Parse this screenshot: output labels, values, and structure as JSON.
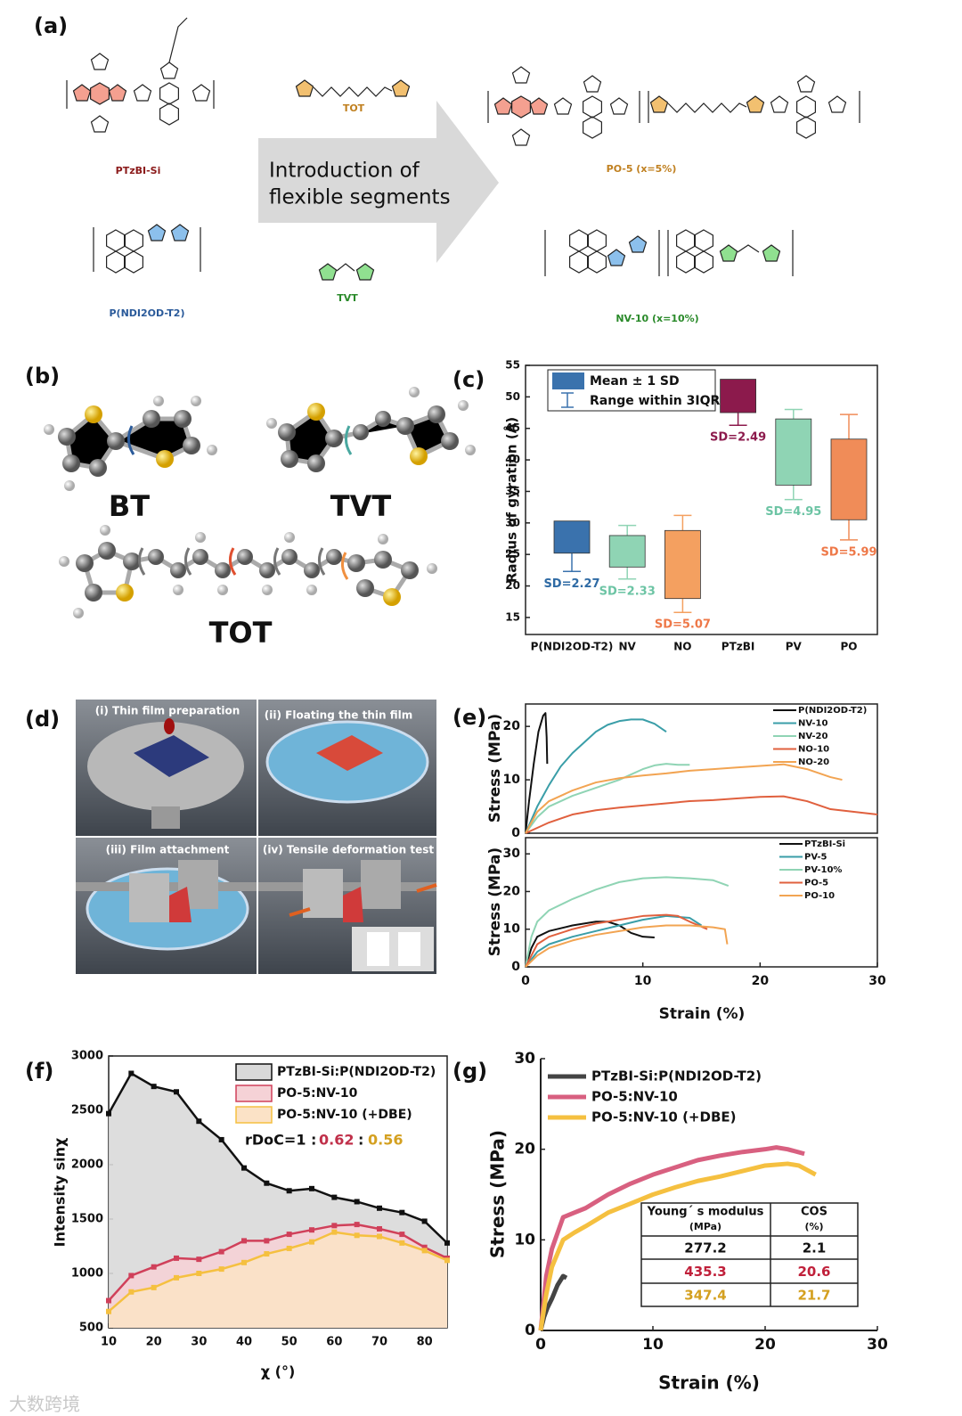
{
  "panel_labels": [
    "(a)",
    "(b)",
    "(c)",
    "(d)",
    "(e)",
    "(f)",
    "(g)"
  ],
  "panel_a": {
    "polymers": [
      "PTzBI-Si",
      "P(NDI2OD-T2)"
    ],
    "linkers": [
      "TOT",
      "TVT"
    ],
    "arrow_text": [
      "Introduction of",
      "flexible segments"
    ],
    "products": [
      "PO-5 (x=5%)",
      "NV-10 (x=10%)"
    ]
  },
  "panel_b": {
    "labels": [
      "BT",
      "TVT",
      "TOT"
    ]
  },
  "panel_d": {
    "steps": [
      "(i) Thin film preparation",
      "(ii) Floating the thin film",
      "(iii) Film attachment",
      "(iv) Tensile deformation test"
    ]
  },
  "chart_data": [
    {
      "type": "box",
      "ylabel": "Radius of gyration (Å)",
      "categories": [
        "P(NDI2OD-T2)",
        "NV",
        "NO",
        "PTzBI",
        "PV",
        "PO"
      ],
      "box_low": [
        25.2,
        23,
        18,
        47.5,
        36,
        30.5
      ],
      "box_high": [
        30.3,
        28,
        28.8,
        52.8,
        46.5,
        43.3
      ],
      "whisker_low": [
        22.3,
        21.1,
        15.8,
        45.5,
        33.7,
        27.3
      ],
      "whisker_high": [
        null,
        29.6,
        31.2,
        null,
        48,
        47.2
      ],
      "colors": [
        "#3a72ad",
        "#8fd4b4",
        "#f4a060",
        "#8c1a4c",
        "#8fd4b4",
        "#f08c58"
      ],
      "label_colors": [
        "#2e6aa4",
        "#6cc4a4",
        "#ee7848",
        "#8c1a4c",
        "#6cc4a4",
        "#ee7848"
      ],
      "annotations": [
        "SD=2.27",
        "SD=2.33",
        "SD=5.07",
        "SD=2.49",
        "SD=4.95",
        "SD=5.99"
      ],
      "legend": [
        "Mean ± 1 SD",
        "Range within 3IQR"
      ],
      "ylim": [
        12.3,
        55
      ],
      "yticks": [
        15,
        20,
        25,
        30,
        35,
        40,
        45,
        50,
        55
      ]
    },
    {
      "type": "line",
      "ylabel": "Stress (MPa)",
      "xlim": [
        0,
        30
      ],
      "ylim": [
        0,
        24.2
      ],
      "yticks": [
        0,
        10,
        20
      ],
      "series": [
        {
          "name": "P(NDI2OD-T2)",
          "color": "#111111",
          "x": [
            0,
            0.3,
            0.7,
            1.1,
            1.5,
            1.7,
            1.8,
            1.85
          ],
          "values": [
            0,
            6,
            13,
            19,
            22,
            22.5,
            18,
            13
          ]
        },
        {
          "name": "NV-10",
          "color": "#3a9ea8",
          "x": [
            0,
            1,
            2,
            3,
            4,
            5,
            6,
            7,
            8,
            9,
            10,
            11,
            12
          ],
          "values": [
            0,
            5,
            9,
            12.5,
            15,
            17,
            19,
            20.3,
            21,
            21.3,
            21.3,
            20.5,
            19
          ]
        },
        {
          "name": "NV-20",
          "color": "#8fd4b4",
          "x": [
            0,
            1,
            2,
            4,
            6,
            8,
            9,
            10,
            11,
            12,
            13,
            14
          ],
          "values": [
            0,
            3,
            5,
            7,
            8.5,
            10,
            11,
            12,
            12.7,
            13,
            12.8,
            12.8
          ]
        },
        {
          "name": "NO-10",
          "color": "#e0603e",
          "x": [
            0,
            2,
            4,
            6,
            8,
            10,
            12,
            14,
            16,
            18,
            20,
            22,
            24,
            26,
            28,
            30
          ],
          "values": [
            0,
            2,
            3.5,
            4.3,
            4.8,
            5.2,
            5.6,
            6,
            6.2,
            6.5,
            6.8,
            6.9,
            6,
            4.5,
            4,
            3.5
          ]
        },
        {
          "name": "NO-20",
          "color": "#f2a452",
          "x": [
            0,
            1,
            2,
            4,
            6,
            8,
            10,
            12,
            14,
            16,
            18,
            20,
            22,
            24,
            26,
            27
          ],
          "values": [
            0,
            4,
            6,
            8,
            9.5,
            10.3,
            10.8,
            11.2,
            11.7,
            12,
            12.3,
            12.6,
            12.9,
            12,
            10.5,
            10
          ]
        }
      ]
    },
    {
      "type": "line",
      "ylabel": "Stress (MPa)",
      "xlabel": "Strain (%)",
      "xlim": [
        0,
        30
      ],
      "xticks": [
        0,
        10,
        20,
        30
      ],
      "ylim": [
        0,
        34.3
      ],
      "yticks": [
        0,
        10,
        20,
        30
      ],
      "series": [
        {
          "name": "PTzBI-Si",
          "color": "#111111",
          "x": [
            0,
            0.5,
            1,
            2,
            4,
            6,
            7,
            8,
            9,
            10,
            11
          ],
          "values": [
            0,
            5,
            8,
            9.5,
            11,
            12,
            12,
            11,
            9,
            8,
            7.8
          ]
        },
        {
          "name": "PV-5",
          "color": "#3a9ea8",
          "x": [
            0,
            1,
            2,
            4,
            6,
            8,
            10,
            12,
            14,
            15
          ],
          "values": [
            0,
            4,
            6,
            8,
            9.5,
            11,
            12.5,
            13.5,
            13,
            11
          ]
        },
        {
          "name": "PV-10%",
          "color": "#8fd4b4",
          "x": [
            0,
            0.5,
            1,
            2,
            4,
            6,
            8,
            10,
            12,
            14,
            16,
            17.3
          ],
          "values": [
            0,
            8,
            12,
            15,
            18,
            20.5,
            22.5,
            23.5,
            23.8,
            23.5,
            23,
            21.5
          ]
        },
        {
          "name": "PO-5",
          "color": "#e0603e",
          "x": [
            0,
            1,
            2,
            4,
            6,
            8,
            10,
            12,
            13,
            14,
            15.5
          ],
          "values": [
            0,
            6,
            8,
            10,
            11.5,
            12.5,
            13.5,
            13.8,
            13.5,
            12,
            10
          ]
        },
        {
          "name": "PO-10",
          "color": "#f2a452",
          "x": [
            0,
            1,
            2,
            4,
            6,
            8,
            10,
            12,
            14,
            16,
            17,
            17.2
          ],
          "values": [
            0,
            3,
            5,
            7,
            8.5,
            9.5,
            10.5,
            11,
            11,
            10.5,
            10,
            6
          ]
        }
      ]
    },
    {
      "type": "area",
      "xlabel": "χ (°)",
      "ylabel": "Intensity sinχ",
      "x": [
        10,
        15,
        20,
        25,
        30,
        35,
        40,
        45,
        50,
        55,
        60,
        65,
        70,
        75,
        80,
        85
      ],
      "xlim": [
        10,
        85
      ],
      "xticks": [
        10,
        20,
        30,
        40,
        50,
        60,
        70,
        80
      ],
      "ylim": [
        500,
        3000
      ],
      "yticks": [
        500,
        1000,
        1500,
        2000,
        2500,
        3000
      ],
      "series": [
        {
          "name": "PTzBI-Si:P(NDI2OD-T2)",
          "color": "#111111",
          "fill": "#d9d9d9",
          "values": [
            2470,
            2840,
            2720,
            2670,
            2400,
            2230,
            1970,
            1830,
            1760,
            1780,
            1700,
            1660,
            1600,
            1560,
            1480,
            1280
          ]
        },
        {
          "name": "PO-5:NV-10",
          "color": "#d0405a",
          "fill": "#f5d2d6",
          "values": [
            750,
            980,
            1060,
            1140,
            1130,
            1200,
            1300,
            1300,
            1360,
            1400,
            1440,
            1450,
            1410,
            1360,
            1240,
            1140
          ]
        },
        {
          "name": "PO-5:NV-10 (+DBE)",
          "color": "#f5c040",
          "fill": "#fbe2c6",
          "values": [
            650,
            830,
            870,
            960,
            1000,
            1040,
            1100,
            1180,
            1230,
            1290,
            1380,
            1350,
            1340,
            1280,
            1210,
            1120
          ]
        }
      ],
      "annotation": [
        {
          "text": "rDoC=1 :",
          "color": "#111111"
        },
        {
          "text": "0.62",
          "color": "#c0304a"
        },
        {
          "text": ":",
          "color": "#111111"
        },
        {
          "text": "0.56",
          "color": "#d4a020"
        }
      ]
    },
    {
      "type": "line",
      "xlabel": "Strain (%)",
      "ylabel": "Stress (MPa)",
      "xlim": [
        0,
        30
      ],
      "xticks": [
        0,
        10,
        20,
        30
      ],
      "ylim": [
        0,
        30
      ],
      "yticks": [
        0,
        10,
        20,
        30
      ],
      "series": [
        {
          "name": "PTzBI-Si:P(NDI2OD-T2)",
          "color": "#444444",
          "x": [
            0,
            0.3,
            0.6,
            1,
            1.5,
            2,
            2.3
          ],
          "values": [
            0,
            1.5,
            2.5,
            3.5,
            5,
            6,
            5.8
          ]
        },
        {
          "name": "PO-5:NV-10",
          "color": "#d86080",
          "x": [
            0,
            0.5,
            1,
            2,
            3,
            4,
            6,
            8,
            10,
            12,
            14,
            16,
            18,
            20,
            21,
            22,
            23.5
          ],
          "values": [
            0,
            6,
            9,
            12.5,
            13,
            13.5,
            15,
            16.2,
            17.2,
            18,
            18.8,
            19.3,
            19.7,
            20,
            20.2,
            20,
            19.5
          ]
        },
        {
          "name": "PO-5:NV-10 (+DBE)",
          "color": "#f5c040",
          "x": [
            0,
            0.5,
            1,
            2,
            3,
            4,
            6,
            8,
            10,
            12,
            14,
            16,
            18,
            20,
            22,
            23,
            24.5
          ],
          "values": [
            0,
            4,
            7,
            10,
            10.8,
            11.5,
            13,
            14,
            15,
            15.8,
            16.5,
            17,
            17.6,
            18.2,
            18.4,
            18.2,
            17.2
          ]
        }
      ],
      "table": {
        "header": [
          [
            "Young´ s modulus",
            "(MPa)"
          ],
          [
            "COS",
            "(%)"
          ]
        ],
        "rows": [
          [
            "277.2",
            "2.1"
          ],
          [
            "435.3",
            "20.6"
          ],
          [
            "347.4",
            "21.7"
          ]
        ],
        "row_colors": [
          "#111111",
          "#c0203a",
          "#d4a020"
        ]
      }
    }
  ],
  "watermark": "大数跨境"
}
